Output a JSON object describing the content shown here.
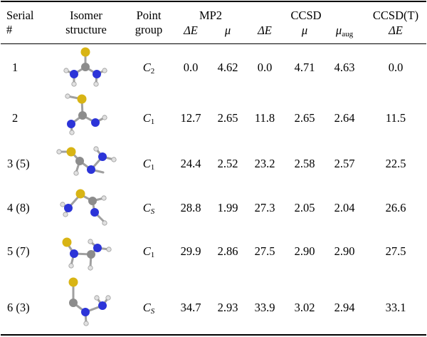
{
  "headers": {
    "serial": [
      "Serial",
      "#"
    ],
    "isomer": [
      "Isomer",
      "structure"
    ],
    "point": [
      "Point",
      "group"
    ],
    "mp2": "MP2",
    "ccsd": "CCSD",
    "ccsdt": "CCSD(T)",
    "delta_e": "ΔE",
    "mu": "μ",
    "mu_aug_base": "μ",
    "mu_aug_sub": "aug"
  },
  "rows": [
    {
      "serial": "1",
      "pg": "C",
      "pg_sub": "2",
      "pg_sub_italic": false,
      "mp2_de": "0.0",
      "mp2_mu": "4.62",
      "ccsd_de": "0.0",
      "ccsd_mu": "4.71",
      "ccsd_mu_aug": "4.63",
      "ccsdt_de": "0.0"
    },
    {
      "serial": "2",
      "pg": "C",
      "pg_sub": "1",
      "pg_sub_italic": false,
      "mp2_de": "12.7",
      "mp2_mu": "2.65",
      "ccsd_de": "11.8",
      "ccsd_mu": "2.65",
      "ccsd_mu_aug": "2.64",
      "ccsdt_de": "11.5"
    },
    {
      "serial": "3 (5)",
      "pg": "C",
      "pg_sub": "1",
      "pg_sub_italic": false,
      "mp2_de": "24.4",
      "mp2_mu": "2.52",
      "ccsd_de": "23.2",
      "ccsd_mu": "2.58",
      "ccsd_mu_aug": "2.57",
      "ccsdt_de": "22.5"
    },
    {
      "serial": "4 (8)",
      "pg": "C",
      "pg_sub": "S",
      "pg_sub_italic": true,
      "mp2_de": "28.8",
      "mp2_mu": "1.99",
      "ccsd_de": "27.3",
      "ccsd_mu": "2.05",
      "ccsd_mu_aug": "2.04",
      "ccsdt_de": "26.6"
    },
    {
      "serial": "5 (7)",
      "pg": "C",
      "pg_sub": "1",
      "pg_sub_italic": false,
      "mp2_de": "29.9",
      "mp2_mu": "2.86",
      "ccsd_de": "27.5",
      "ccsd_mu": "2.90",
      "ccsd_mu_aug": "2.90",
      "ccsdt_de": "27.5"
    },
    {
      "serial": "6 (3)",
      "pg": "C",
      "pg_sub": "S",
      "pg_sub_italic": true,
      "mp2_de": "34.7",
      "mp2_mu": "2.93",
      "ccsd_de": "33.9",
      "ccsd_mu": "3.02",
      "ccsd_mu_aug": "2.94",
      "ccsdt_de": "33.1"
    }
  ],
  "atom_colors": {
    "S": "#d8b414",
    "C": "#8c8c8c",
    "N": "#2c34d8",
    "H": "#e6e6e6"
  }
}
